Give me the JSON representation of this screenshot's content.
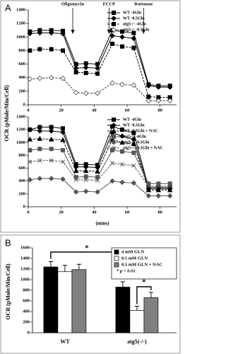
{
  "chart_data": [
    {
      "type": "line",
      "panel_label": "A",
      "ylabel": "OCR (pMole/Min/Cell)",
      "x": [
        1,
        7,
        14,
        21,
        29,
        35,
        42,
        51,
        57,
        64,
        73,
        79,
        86
      ],
      "xlim": [
        0,
        90
      ],
      "xticks": [
        0,
        20,
        40,
        60,
        80
      ],
      "ylim": [
        0,
        1400
      ],
      "yticks": [
        0,
        200,
        400,
        600,
        800,
        1000,
        1200,
        1400
      ],
      "annotations": [
        {
          "text": "Oligomycin",
          "x": 27
        },
        {
          "text": "FCCP",
          "x": 49
        },
        {
          "text": "Rotenone",
          "x": 70
        }
      ],
      "series": [
        {
          "name": "WT -4Gln",
          "color": "#000000",
          "marker": "square",
          "dashed": false,
          "values": [
            1080,
            1100,
            1100,
            1090,
            600,
            610,
            600,
            1100,
            1080,
            1060,
            300,
            280,
            280
          ]
        },
        {
          "name": "WT -0.5Gln",
          "color": "#000000",
          "marker": "diamond",
          "dashed": false,
          "values": [
            1050,
            1060,
            1060,
            1050,
            540,
            550,
            540,
            1020,
            1000,
            980,
            280,
            260,
            260
          ]
        },
        {
          "name": "atg5-/- -4Gln",
          "color": "#000000",
          "marker": "square",
          "dashed": true,
          "values": [
            800,
            820,
            820,
            800,
            480,
            470,
            460,
            900,
            860,
            840,
            120,
            110,
            110
          ]
        },
        {
          "name": "atg5-/- -0.5Gln",
          "color": "#444444",
          "marker": "diamond-open",
          "dashed": true,
          "values": [
            380,
            390,
            400,
            390,
            180,
            170,
            170,
            320,
            300,
            290,
            60,
            60,
            60
          ]
        }
      ]
    },
    {
      "type": "line",
      "xlabel": "(mins)",
      "x": [
        1,
        7,
        14,
        21,
        29,
        35,
        42,
        51,
        57,
        64,
        73,
        79,
        86
      ],
      "xlim": [
        0,
        90
      ],
      "xticks": [
        0,
        20,
        40,
        60,
        80
      ],
      "ylim": [
        0,
        1400
      ],
      "yticks": [
        0,
        200,
        400,
        600,
        800,
        1000,
        1200,
        1400
      ],
      "series": [
        {
          "name": "WT -4Gln",
          "color": "#000000",
          "marker": "square",
          "dashed": false,
          "values": [
            1200,
            1240,
            1240,
            1220,
            660,
            660,
            650,
            1250,
            1200,
            1150,
            300,
            300,
            300
          ]
        },
        {
          "name": "WT -0.5Gln",
          "color": "#000000",
          "marker": "diamond",
          "dashed": false,
          "values": [
            1200,
            1180,
            1180,
            1160,
            620,
            620,
            610,
            1150,
            1100,
            1050,
            280,
            280,
            280
          ]
        },
        {
          "name": "WT -0.5Gln + NAC",
          "color": "#000000",
          "marker": "triangle",
          "dashed": true,
          "values": [
            1050,
            1060,
            1050,
            1040,
            560,
            560,
            550,
            1050,
            1000,
            980,
            260,
            260,
            260
          ]
        },
        {
          "name": "atg5-/- -4Gln",
          "color": "#555555",
          "marker": "square",
          "dashed": false,
          "values": [
            880,
            900,
            900,
            880,
            460,
            470,
            460,
            880,
            860,
            840,
            360,
            360,
            360
          ]
        },
        {
          "name": "atg5-/- -0.5Gln",
          "color": "#555555",
          "marker": "diamond",
          "dashed": false,
          "values": [
            420,
            440,
            440,
            430,
            230,
            240,
            230,
            400,
            380,
            370,
            170,
            170,
            170
          ]
        },
        {
          "name": "atg5-/- -0.5Gln + NAC",
          "color": "#555555",
          "marker": "x",
          "dashed": true,
          "values": [
            700,
            720,
            720,
            700,
            420,
            420,
            410,
            680,
            660,
            640,
            320,
            320,
            320
          ]
        }
      ]
    },
    {
      "type": "bar",
      "panel_label": "B",
      "ylabel": "OCR (pMole/Min/Cell)",
      "categories": [
        "WT",
        "atg5(-/-)"
      ],
      "ylim": [
        0,
        1600
      ],
      "yticks": [
        0,
        200,
        400,
        600,
        800,
        1000,
        1200,
        1400,
        1600
      ],
      "significance": [
        "*",
        "*"
      ],
      "note": "* p < 0.01",
      "series": [
        {
          "name": "4 mM GLN",
          "color": "#000000",
          "values": [
            1240,
            860
          ],
          "errors": [
            100,
            100
          ]
        },
        {
          "name": "0.5 mM GLN",
          "color": "#ffffff",
          "values": [
            1150,
            420
          ],
          "errors": [
            120,
            80
          ]
        },
        {
          "name": "0.5 mM GLN + NAC",
          "color": "#808080",
          "values": [
            1190,
            660
          ],
          "errors": [
            100,
            100
          ]
        }
      ]
    }
  ]
}
